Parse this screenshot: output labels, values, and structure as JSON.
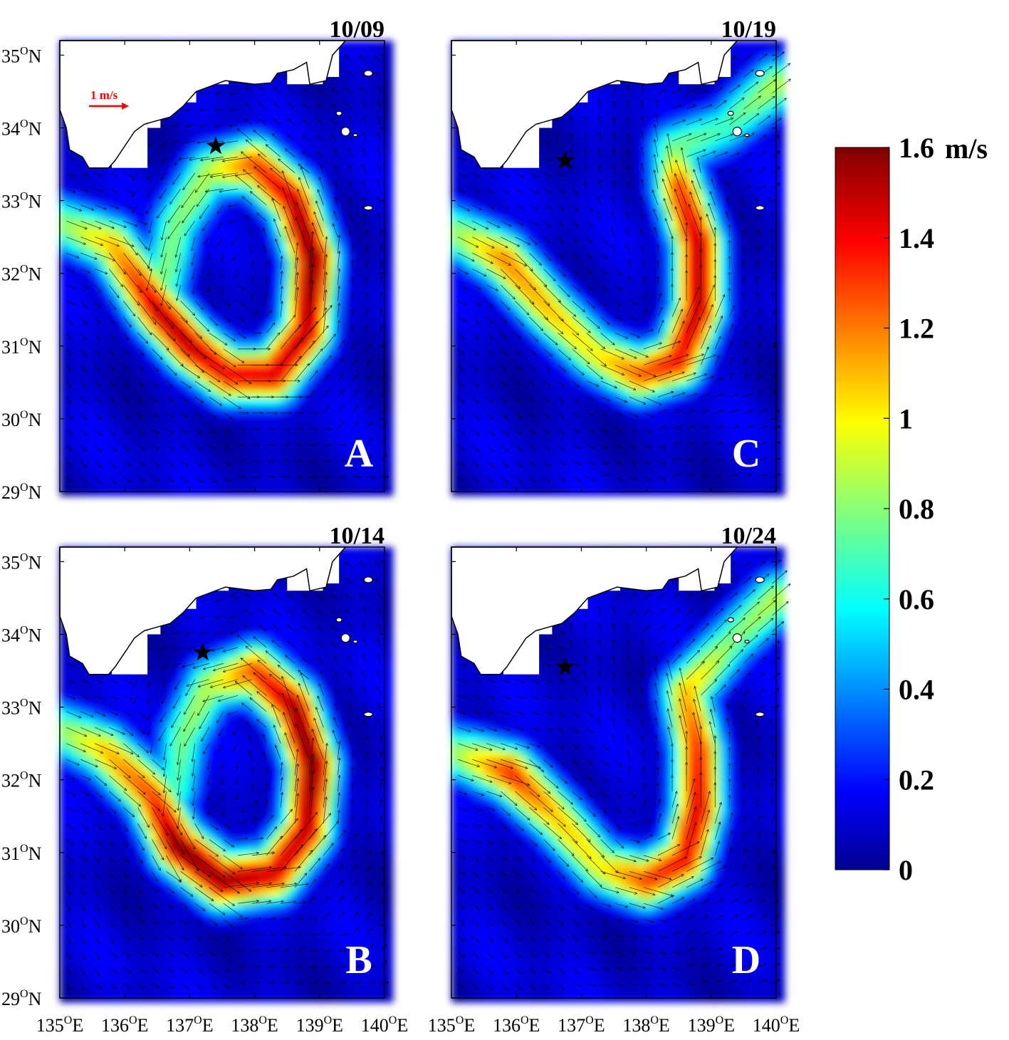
{
  "panels": [
    {
      "id": "A",
      "letter": "A",
      "date": "10/09",
      "star": [
        137.4,
        33.75
      ],
      "show_scale": true,
      "scale_label": "1 m/s"
    },
    {
      "id": "B",
      "letter": "B",
      "date": "10/14",
      "star": [
        137.2,
        33.75
      ],
      "show_scale": false
    },
    {
      "id": "C",
      "letter": "C",
      "date": "10/19",
      "star": [
        136.75,
        33.55
      ],
      "show_scale": false
    },
    {
      "id": "D",
      "letter": "D",
      "date": "10/24",
      "star": [
        136.75,
        33.55
      ],
      "show_scale": false
    }
  ],
  "lat_labels": [
    "35",
    "34",
    "33",
    "32",
    "31",
    "30",
    "29"
  ],
  "lat_values": [
    35,
    34,
    33,
    32,
    31,
    30,
    29
  ],
  "lon_labels": [
    "135",
    "136",
    "137",
    "138",
    "139",
    "140"
  ],
  "lon_values": [
    135,
    136,
    137,
    138,
    139,
    140
  ],
  "lat_suffix": "N",
  "lon_suffix": "E",
  "degree_symbol": "O",
  "colorbar": {
    "unit": "m/s",
    "ticks": [
      "1.6",
      "1.4",
      "1.2",
      "1",
      "0.8",
      "0.6",
      "0.4",
      "0.2",
      "0"
    ],
    "tick_values": [
      1.6,
      1.4,
      1.2,
      1.0,
      0.8,
      0.6,
      0.4,
      0.2,
      0
    ],
    "min": 0,
    "max": 1.6,
    "colormap": "jet"
  },
  "colors": {
    "scale_arrow": "#ff0000",
    "vector": "#000000",
    "land": "#ffffff",
    "coast": "#000000"
  },
  "map_extent": {
    "lon": [
      135,
      140
    ],
    "lat": [
      29,
      35.2
    ]
  }
}
